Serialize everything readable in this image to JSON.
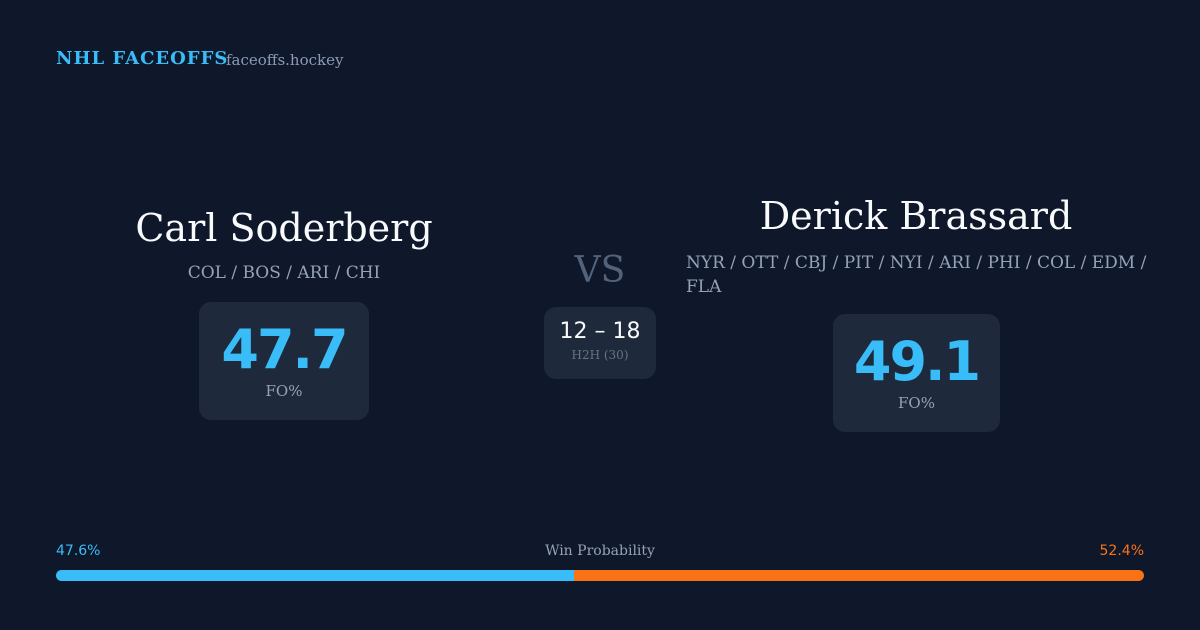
{
  "header": {
    "brand": "NHL FACEOFFS",
    "site": "faceoffs.hockey"
  },
  "players": [
    {
      "name": "Carl Soderberg",
      "teams": "COL / BOS / ARI / CHI",
      "fo_pct": 47.7,
      "fo_label": "FO%"
    },
    {
      "name": "Derick Brassard",
      "teams": "NYR / OTT / CBJ / PIT / NYI / ARI / PHI / COL / EDM / FLA",
      "fo_pct": 49.1,
      "fo_label": "FO%"
    }
  ],
  "versus": "VS",
  "h2h": {
    "score": "12 – 18",
    "label": "H2H (30)"
  },
  "win_probability": {
    "title": "Win Probability",
    "values": [
      47.6,
      52.4
    ],
    "value_labels": [
      "47.6%",
      "52.4%"
    ],
    "colors": [
      "#38bdf8",
      "#f97316"
    ]
  }
}
